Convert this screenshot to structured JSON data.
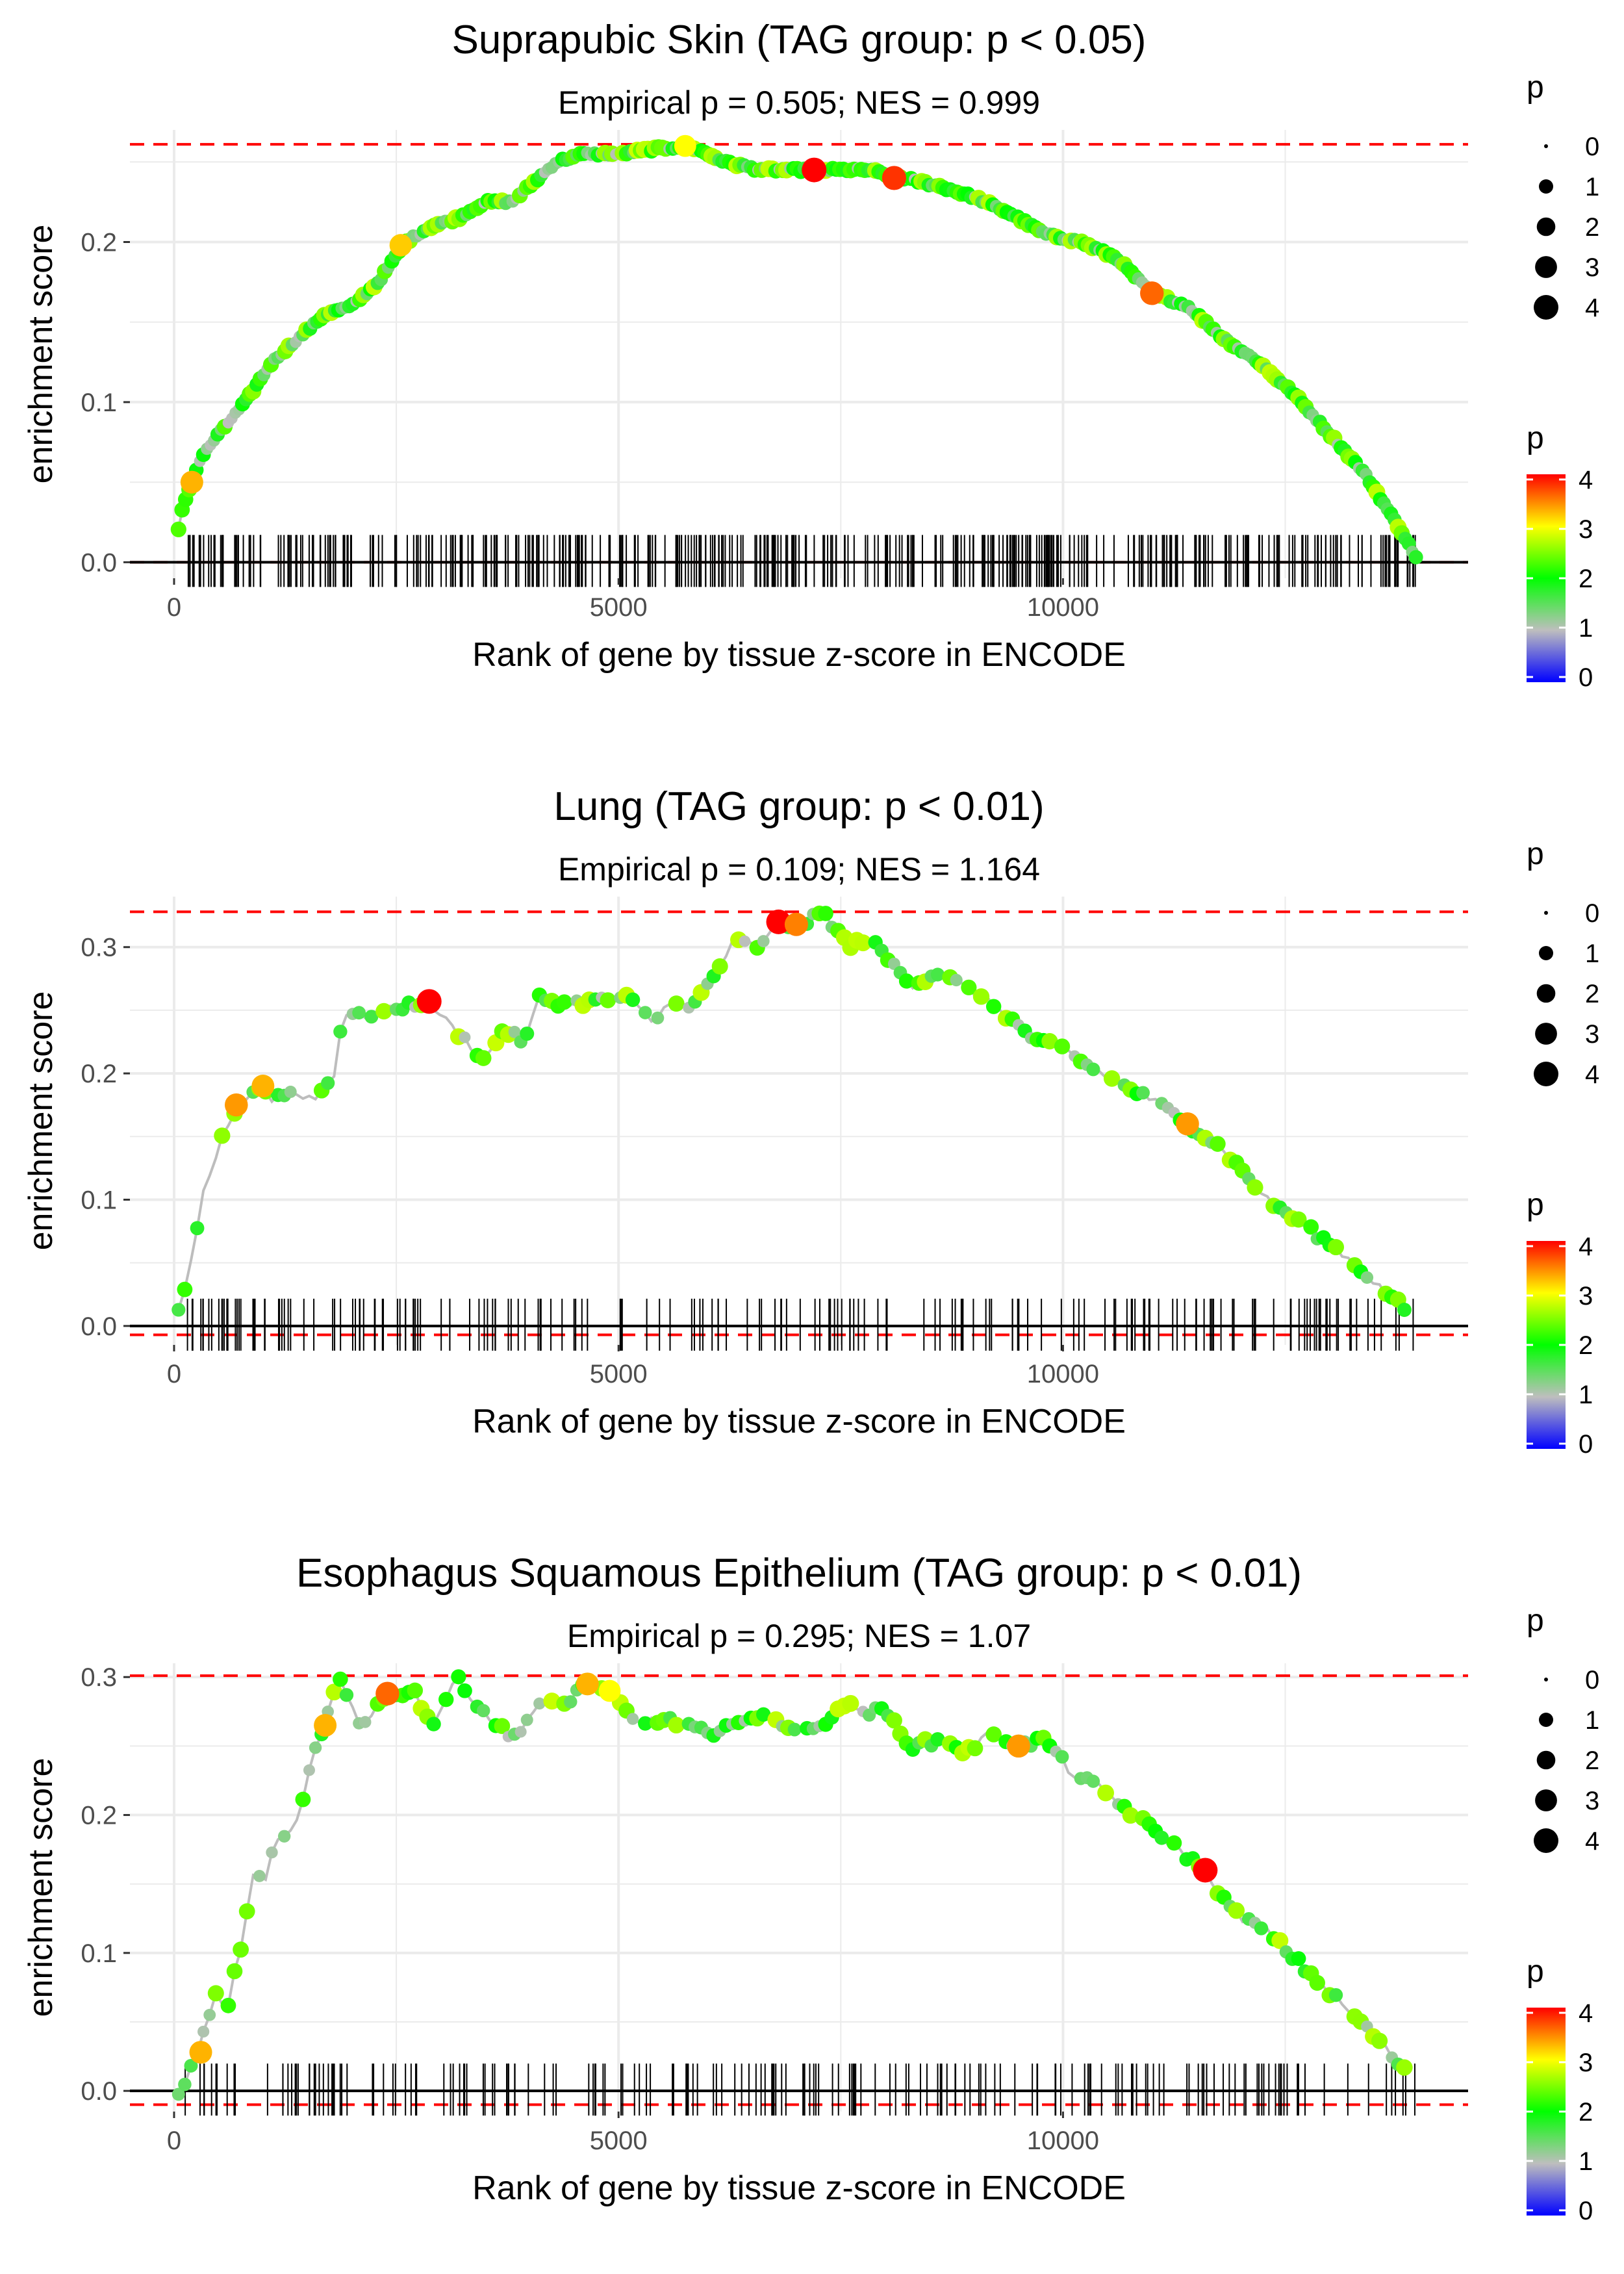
{
  "figure": {
    "panels": [
      {
        "title": "Suprapubic Skin (TAG group: p < 0.05)",
        "subtitle": "Empirical p = 0.505; NES = 0.999",
        "legend_size_title": "p",
        "legend_size_labels": [
          "0",
          "1",
          "2",
          "3",
          "4"
        ],
        "legend_color_title": "p",
        "legend_color_labels": [
          "0",
          "1",
          "2",
          "3",
          "4"
        ]
      },
      {
        "title": "Lung (TAG group: p < 0.01)",
        "subtitle": "Empirical p = 0.109; NES = 1.164",
        "legend_size_title": "p",
        "legend_size_labels": [
          "0",
          "1",
          "2",
          "3",
          "4"
        ],
        "legend_color_title": "p",
        "legend_color_labels": [
          "0",
          "1",
          "2",
          "3",
          "4"
        ]
      },
      {
        "title": "Esophagus Squamous Epithelium (TAG group: p < 0.01)",
        "subtitle": "Empirical p = 0.295; NES = 1.07",
        "legend_size_title": "p",
        "legend_size_labels": [
          "0",
          "1",
          "2",
          "3",
          "4"
        ],
        "legend_color_title": "p",
        "legend_color_labels": [
          "0",
          "1",
          "2",
          "3",
          "4"
        ]
      }
    ]
  },
  "colors": {
    "red_dashed": "#ff0000",
    "line": "#bdbdbd",
    "grid": "#ebebeb",
    "scale": [
      "#0000ff",
      "#bebebe",
      "#00ff00",
      "#ffff00",
      "#ff0000"
    ]
  },
  "chart_data": [
    {
      "type": "line",
      "title": "Suprapubic Skin (TAG group: p < 0.05)",
      "subtitle": "Empirical p = 0.505; NES = 0.999",
      "xlabel": "Rank of gene by tissue z-score in ENCODE",
      "ylabel": "enrichment score",
      "xlim": [
        0,
        14000
      ],
      "ylim": [
        -0.01,
        0.27
      ],
      "xticks": [
        0,
        5000,
        10000
      ],
      "xtick_labels": [
        "0",
        "5000",
        "10000"
      ],
      "yticks": [
        0,
        0.1,
        0.2
      ],
      "ytick_labels": [
        "0.0",
        "0.1",
        "0.2"
      ],
      "max_es": 0.261,
      "min_es": 0.0,
      "density": "dense",
      "curve": [
        [
          50,
          0.02
        ],
        [
          100,
          0.035
        ],
        [
          200,
          0.05
        ],
        [
          300,
          0.065
        ],
        [
          500,
          0.08
        ],
        [
          800,
          0.1
        ],
        [
          1100,
          0.125
        ],
        [
          1400,
          0.14
        ],
        [
          1700,
          0.155
        ],
        [
          2000,
          0.16
        ],
        [
          2300,
          0.175
        ],
        [
          2600,
          0.2
        ],
        [
          2900,
          0.21
        ],
        [
          3200,
          0.215
        ],
        [
          3500,
          0.225
        ],
        [
          3800,
          0.225
        ],
        [
          4000,
          0.235
        ],
        [
          4300,
          0.25
        ],
        [
          4600,
          0.255
        ],
        [
          5000,
          0.255
        ],
        [
          5400,
          0.258
        ],
        [
          5800,
          0.26
        ],
        [
          6200,
          0.25
        ],
        [
          6600,
          0.245
        ],
        [
          7000,
          0.245
        ],
        [
          7400,
          0.245
        ],
        [
          7800,
          0.245
        ],
        [
          8200,
          0.24
        ],
        [
          8600,
          0.235
        ],
        [
          9000,
          0.228
        ],
        [
          9400,
          0.218
        ],
        [
          9800,
          0.205
        ],
        [
          10200,
          0.2
        ],
        [
          10600,
          0.19
        ],
        [
          11000,
          0.168
        ],
        [
          11400,
          0.16
        ],
        [
          11800,
          0.14
        ],
        [
          12200,
          0.125
        ],
        [
          12600,
          0.105
        ],
        [
          13000,
          0.08
        ],
        [
          13400,
          0.055
        ],
        [
          13800,
          0.02
        ],
        [
          14000,
          0.0
        ]
      ],
      "highlight_points": [
        {
          "x": 200,
          "y": 0.05,
          "p": 3.3
        },
        {
          "x": 2550,
          "y": 0.198,
          "p": 3.2
        },
        {
          "x": 5750,
          "y": 0.26,
          "p": 3.0
        },
        {
          "x": 7200,
          "y": 0.245,
          "p": 4.0
        },
        {
          "x": 8100,
          "y": 0.24,
          "p": 3.8
        },
        {
          "x": 11000,
          "y": 0.168,
          "p": 3.6
        }
      ]
    },
    {
      "type": "line",
      "title": "Lung (TAG group: p < 0.01)",
      "subtitle": "Empirical p = 0.109; NES = 1.164",
      "xlabel": "Rank of gene by tissue z-score in ENCODE",
      "ylabel": "enrichment score",
      "xlim": [
        0,
        14000
      ],
      "ylim": [
        -0.015,
        0.34
      ],
      "xticks": [
        0,
        5000,
        10000
      ],
      "xtick_labels": [
        "0",
        "5000",
        "10000"
      ],
      "yticks": [
        0,
        0.1,
        0.2,
        0.3
      ],
      "ytick_labels": [
        "0.0",
        "0.1",
        "0.2",
        "0.3"
      ],
      "max_es": 0.328,
      "min_es": -0.007,
      "density": "sparse",
      "curve": [
        [
          50,
          0.01
        ],
        [
          150,
          0.035
        ],
        [
          250,
          0.07
        ],
        [
          300,
          0.1
        ],
        [
          400,
          0.12
        ],
        [
          500,
          0.14
        ],
        [
          600,
          0.16
        ],
        [
          750,
          0.175
        ],
        [
          950,
          0.19
        ],
        [
          1100,
          0.18
        ],
        [
          1300,
          0.185
        ],
        [
          1600,
          0.18
        ],
        [
          1800,
          0.2
        ],
        [
          1900,
          0.248
        ],
        [
          2100,
          0.245
        ],
        [
          2400,
          0.25
        ],
        [
          2700,
          0.255
        ],
        [
          2850,
          0.257
        ],
        [
          3500,
          0.21
        ],
        [
          3700,
          0.235
        ],
        [
          3950,
          0.225
        ],
        [
          4100,
          0.26
        ],
        [
          4400,
          0.255
        ],
        [
          4800,
          0.258
        ],
        [
          5100,
          0.26
        ],
        [
          5400,
          0.24
        ],
        [
          5600,
          0.26
        ],
        [
          5800,
          0.25
        ],
        [
          6100,
          0.28
        ],
        [
          6300,
          0.305
        ],
        [
          6600,
          0.3
        ],
        [
          6800,
          0.32
        ],
        [
          7000,
          0.315
        ],
        [
          7300,
          0.328
        ],
        [
          7600,
          0.3
        ],
        [
          7800,
          0.308
        ],
        [
          8300,
          0.27
        ],
        [
          8600,
          0.28
        ],
        [
          9100,
          0.26
        ],
        [
          9300,
          0.25
        ],
        [
          9700,
          0.225
        ],
        [
          10000,
          0.22
        ],
        [
          10300,
          0.205
        ],
        [
          10700,
          0.19
        ],
        [
          11100,
          0.175
        ],
        [
          11400,
          0.16
        ],
        [
          11800,
          0.14
        ],
        [
          12300,
          0.1
        ],
        [
          12700,
          0.08
        ],
        [
          13100,
          0.06
        ],
        [
          13500,
          0.035
        ],
        [
          13900,
          0.01
        ]
      ],
      "highlight_points": [
        {
          "x": 700,
          "y": 0.175,
          "p": 3.4
        },
        {
          "x": 1000,
          "y": 0.19,
          "p": 3.3
        },
        {
          "x": 2870,
          "y": 0.257,
          "p": 4.0
        },
        {
          "x": 6800,
          "y": 0.32,
          "p": 4.0
        },
        {
          "x": 7000,
          "y": 0.318,
          "p": 3.5
        },
        {
          "x": 11400,
          "y": 0.16,
          "p": 3.4
        }
      ]
    },
    {
      "type": "line",
      "title": "Esophagus Squamous Epithelium (TAG group: p < 0.01)",
      "subtitle": "Empirical p = 0.295; NES = 1.07",
      "xlabel": "Rank of gene by tissue z-score in ENCODE",
      "ylabel": "enrichment score",
      "xlim": [
        0,
        14000
      ],
      "ylim": [
        -0.015,
        0.31
      ],
      "xticks": [
        0,
        5000,
        10000
      ],
      "xtick_labels": [
        "0",
        "5000",
        "10000"
      ],
      "yticks": [
        0,
        0.1,
        0.2,
        0.3
      ],
      "ytick_labels": [
        "0.0",
        "0.1",
        "0.2",
        "0.3"
      ],
      "max_es": 0.301,
      "min_es": -0.01,
      "density": "sparse",
      "curve": [
        [
          50,
          0.0
        ],
        [
          150,
          0.01
        ],
        [
          250,
          0.025
        ],
        [
          350,
          0.045
        ],
        [
          450,
          0.07
        ],
        [
          600,
          0.06
        ],
        [
          700,
          0.09
        ],
        [
          800,
          0.12
        ],
        [
          900,
          0.16
        ],
        [
          1000,
          0.15
        ],
        [
          1150,
          0.18
        ],
        [
          1300,
          0.185
        ],
        [
          1450,
          0.21
        ],
        [
          1550,
          0.24
        ],
        [
          1700,
          0.265
        ],
        [
          1850,
          0.3
        ],
        [
          2100,
          0.265
        ],
        [
          2400,
          0.288
        ],
        [
          2700,
          0.29
        ],
        [
          2900,
          0.265
        ],
        [
          3200,
          0.3
        ],
        [
          3400,
          0.28
        ],
        [
          3800,
          0.255
        ],
        [
          4100,
          0.28
        ],
        [
          4400,
          0.28
        ],
        [
          4600,
          0.295
        ],
        [
          4900,
          0.29
        ],
        [
          5200,
          0.265
        ],
        [
          5400,
          0.27
        ],
        [
          5800,
          0.265
        ],
        [
          6100,
          0.255
        ],
        [
          6300,
          0.27
        ],
        [
          6700,
          0.27
        ],
        [
          6900,
          0.265
        ],
        [
          7200,
          0.26
        ],
        [
          7500,
          0.28
        ],
        [
          7800,
          0.275
        ],
        [
          8000,
          0.275
        ],
        [
          8300,
          0.25
        ],
        [
          8700,
          0.255
        ],
        [
          8900,
          0.245
        ],
        [
          9200,
          0.26
        ],
        [
          9500,
          0.25
        ],
        [
          9800,
          0.255
        ],
        [
          10100,
          0.23
        ],
        [
          10400,
          0.22
        ],
        [
          10700,
          0.205
        ],
        [
          11000,
          0.19
        ],
        [
          11300,
          0.175
        ],
        [
          11600,
          0.16
        ],
        [
          11900,
          0.13
        ],
        [
          12300,
          0.115
        ],
        [
          12700,
          0.09
        ],
        [
          13100,
          0.065
        ],
        [
          13500,
          0.04
        ],
        [
          13900,
          0.01
        ]
      ],
      "highlight_points": [
        {
          "x": 300,
          "y": 0.028,
          "p": 3.3
        },
        {
          "x": 1700,
          "y": 0.265,
          "p": 3.3
        },
        {
          "x": 2400,
          "y": 0.288,
          "p": 3.6
        },
        {
          "x": 4650,
          "y": 0.295,
          "p": 3.3
        },
        {
          "x": 4900,
          "y": 0.29,
          "p": 3.0
        },
        {
          "x": 9500,
          "y": 0.25,
          "p": 3.4
        },
        {
          "x": 11600,
          "y": 0.16,
          "p": 4.0
        }
      ]
    }
  ]
}
